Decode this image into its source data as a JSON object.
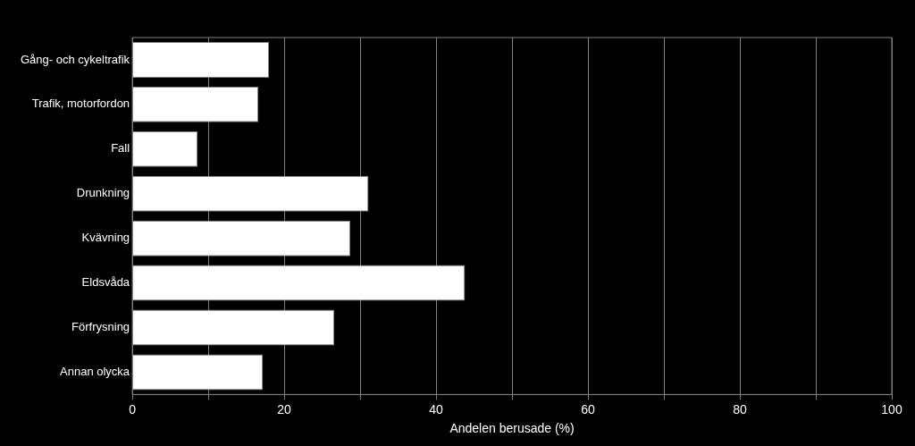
{
  "chart_data": {
    "type": "bar",
    "orientation": "horizontal",
    "xlabel": "Andelen berusade (%)",
    "categories": [
      "Gång- och cykeltrafik",
      "Trafik, motorfordon",
      "Fall",
      "Drunkning",
      "Kvävning",
      "Eldsvåda",
      "Förfrysning",
      "Annan olycka"
    ],
    "values": [
      18.0,
      16.6,
      8.6,
      31.1,
      28.7,
      43.8,
      26.6,
      17.2
    ],
    "color": "#ffffff",
    "xlim": [
      0,
      100
    ],
    "xticks": [
      0,
      {
        "value": 10,
        "label": null
      },
      20,
      {
        "value": 30,
        "label": null
      },
      40,
      {
        "value": 50,
        "label": null
      },
      60,
      {
        "value": 70,
        "label": null
      },
      80,
      {
        "value": 90,
        "label": null
      },
      100
    ],
    "grid": "x"
  }
}
